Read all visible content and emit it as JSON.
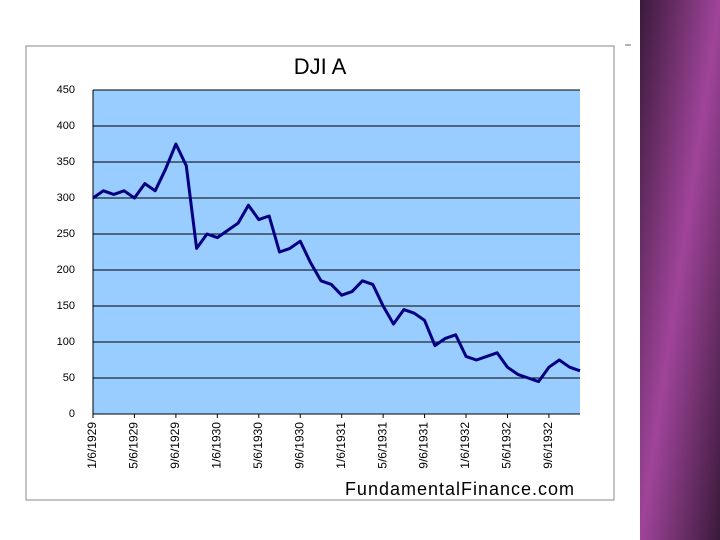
{
  "chart_data": {
    "type": "line",
    "title": "DJI A",
    "source": "FundamentalFinance.com",
    "categories": [
      "1/6/1929",
      null,
      null,
      null,
      "5/6/1929",
      null,
      null,
      null,
      "9/6/1929",
      null,
      null,
      null,
      "1/6/1930",
      null,
      null,
      null,
      "5/6/1930",
      null,
      null,
      null,
      "9/6/1930",
      null,
      null,
      null,
      "1/6/1931",
      null,
      null,
      null,
      "5/6/1931",
      null,
      null,
      null,
      "9/6/1931",
      null,
      null,
      null,
      "1/6/1932",
      null,
      null,
      null,
      "5/6/1932",
      null,
      null,
      null,
      "9/6/1932",
      null,
      null,
      null
    ],
    "series": [
      {
        "color": "#000080",
        "values": [
          300,
          310,
          305,
          310,
          300,
          320,
          310,
          340,
          375,
          345,
          230,
          250,
          245,
          255,
          265,
          290,
          270,
          275,
          225,
          230,
          240,
          210,
          185,
          180,
          165,
          170,
          185,
          180,
          150,
          125,
          145,
          140,
          130,
          95,
          105,
          110,
          80,
          75,
          80,
          85,
          65,
          55,
          50,
          45,
          65,
          75,
          65,
          60
        ]
      }
    ],
    "ylim": [
      0,
      450
    ],
    "yticks": [
      0,
      50,
      100,
      150,
      200,
      250,
      300,
      350,
      400,
      450
    ],
    "grid": true
  }
}
